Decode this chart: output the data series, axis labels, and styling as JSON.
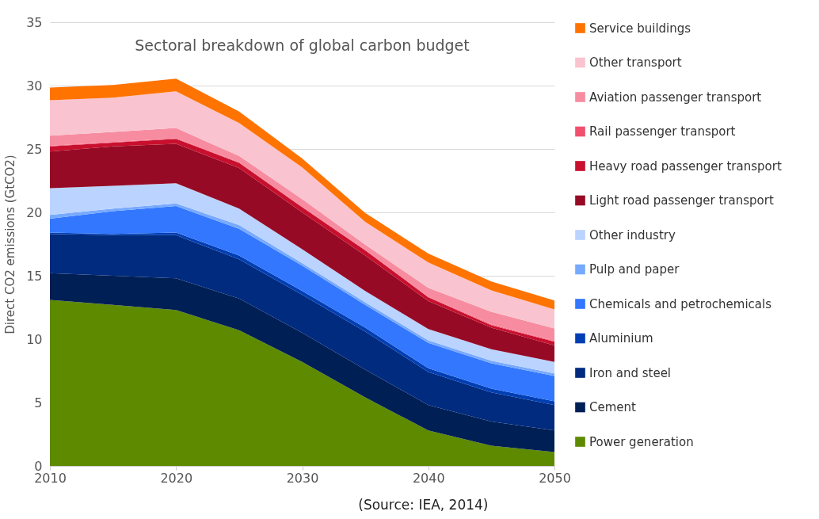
{
  "chart_data": {
    "type": "area",
    "stacked": true,
    "title": "Sectoral breakdown of global carbon budget",
    "ylabel": "Direct CO2 emissions (GtCO2)",
    "x": [
      2010,
      2015,
      2020,
      2025,
      2030,
      2035,
      2040,
      2045,
      2050
    ],
    "series": [
      {
        "name": "Power generation",
        "color": "#5e8a00",
        "values": [
          13.1,
          12.7,
          12.3,
          10.7,
          8.2,
          5.4,
          2.8,
          1.6,
          1.1
        ]
      },
      {
        "name": "Cement",
        "color": "#001f54",
        "values": [
          2.1,
          2.3,
          2.5,
          2.5,
          2.3,
          2.2,
          2.0,
          1.9,
          1.7
        ]
      },
      {
        "name": "Iron and steel",
        "color": "#002b7f",
        "values": [
          3.1,
          3.2,
          3.4,
          3.1,
          3.0,
          3.0,
          2.6,
          2.3,
          2.0
        ]
      },
      {
        "name": "Aluminium",
        "color": "#003eb3",
        "values": [
          0.1,
          0.1,
          0.2,
          0.3,
          0.3,
          0.3,
          0.3,
          0.3,
          0.3
        ]
      },
      {
        "name": "Chemicals and petrochemicals",
        "color": "#3377ff",
        "values": [
          1.1,
          1.8,
          2.1,
          2.1,
          2.0,
          1.8,
          2.0,
          2.0,
          2.0
        ]
      },
      {
        "name": "Pulp and paper",
        "color": "#77aaff",
        "values": [
          0.3,
          0.2,
          0.2,
          0.3,
          0.2,
          0.2,
          0.2,
          0.2,
          0.2
        ]
      },
      {
        "name": "Other industry",
        "color": "#bbd3ff",
        "values": [
          2.1,
          1.8,
          1.6,
          1.3,
          1.1,
          0.9,
          0.9,
          0.9,
          0.9
        ]
      },
      {
        "name": "Light road passenger transport",
        "color": "#960a25",
        "values": [
          2.9,
          3.1,
          3.1,
          3.2,
          2.9,
          2.8,
          2.2,
          1.7,
          1.3
        ]
      },
      {
        "name": "Heavy road passenger transport",
        "color": "#c8102e",
        "values": [
          0.4,
          0.3,
          0.4,
          0.4,
          0.4,
          0.4,
          0.3,
          0.2,
          0.3
        ]
      },
      {
        "name": "Rail passenger transport",
        "color": "#f0506e",
        "values": [
          0.05,
          0.05,
          0.05,
          0.05,
          0.05,
          0.05,
          0.05,
          0.05,
          0.05
        ]
      },
      {
        "name": "Aviation passenger transport",
        "color": "#f78ca0",
        "values": [
          0.8,
          0.8,
          0.8,
          0.5,
          0.6,
          0.4,
          0.7,
          1.0,
          1.0
        ]
      },
      {
        "name": "Other transport",
        "color": "#f9c4cf",
        "values": [
          2.8,
          2.7,
          2.9,
          2.6,
          2.5,
          1.8,
          2.0,
          1.7,
          1.5
        ]
      },
      {
        "name": "Service buildings",
        "color": "#ff7300",
        "values": [
          1.0,
          1.0,
          1.0,
          0.9,
          0.7,
          0.7,
          0.7,
          0.7,
          0.7
        ]
      }
    ],
    "xlim": [
      2010,
      2050
    ],
    "xticks": [
      2010,
      2020,
      2030,
      2040,
      2050
    ],
    "ylim": [
      0,
      35
    ],
    "yticks": [
      0,
      5,
      10,
      15,
      20,
      25,
      30,
      35
    ],
    "grid": "y",
    "legend": "right",
    "annotations": [
      "(Source: IEA, 2014)"
    ]
  }
}
